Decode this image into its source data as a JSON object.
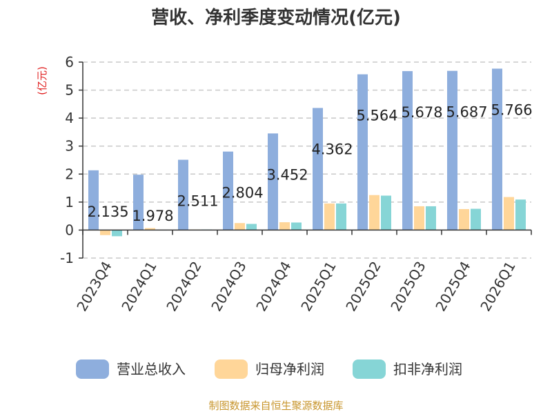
{
  "chart_data": {
    "type": "bar",
    "title": "营收、净利季度变动情况(亿元)",
    "ylabel": "(亿元)",
    "xlabel": "",
    "ylim": [
      -1,
      6
    ],
    "yticks": [
      6,
      5,
      4,
      3,
      2,
      1,
      0,
      -1
    ],
    "grid": true,
    "legend_position": "bottom",
    "categories": [
      "2023Q4",
      "2024Q1",
      "2024Q2",
      "2024Q3",
      "2024Q4",
      "2025Q1",
      "2025Q2",
      "2025Q3",
      "2025Q4",
      "2026Q1"
    ],
    "series": [
      {
        "name": "营业总收入",
        "color": "#8eaedd",
        "values": [
          2.135,
          1.978,
          2.511,
          2.804,
          3.452,
          4.362,
          5.564,
          5.678,
          5.687,
          5.766
        ]
      },
      {
        "name": "归母净利润",
        "color": "#ffd699",
        "values": [
          -0.18,
          0.07,
          0.02,
          0.25,
          0.28,
          0.95,
          1.25,
          0.85,
          0.75,
          1.18
        ]
      },
      {
        "name": "扣非净利润",
        "color": "#86d5d6",
        "values": [
          -0.22,
          0.01,
          0.02,
          0.22,
          0.27,
          0.95,
          1.23,
          0.85,
          0.76,
          1.09
        ]
      }
    ],
    "data_labels": [
      "2.135",
      "1.978",
      "2.511",
      "2.804",
      "3.452",
      "4.362",
      "5.564",
      "5.678",
      "5.687",
      "5.766"
    ]
  },
  "source": "制图数据来自恒生聚源数据库"
}
